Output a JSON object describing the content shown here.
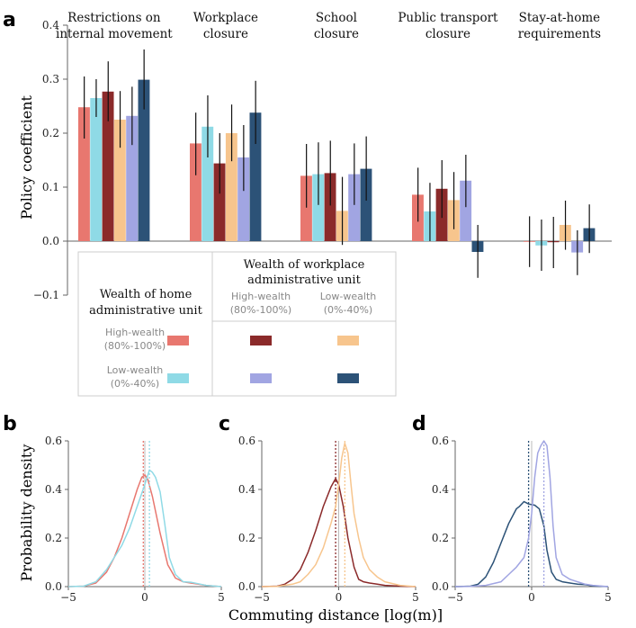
{
  "colors": {
    "hh": "#e8776f",
    "lh": "#8fdae6",
    "hl": "#8b2a2a",
    "ll_inv": "#f7c58d",
    "lhw": "#a1a5e2",
    "lll": "#2c5277",
    "err": "#111111",
    "axis": "#666666"
  },
  "panel_labels": [
    "a",
    "b",
    "c",
    "d"
  ],
  "legend": {
    "row_title": "Wealth of home administrative unit",
    "row_title_lines": [
      "Wealth of home",
      "administrative unit"
    ],
    "col_title_lines": [
      "Wealth of workplace",
      "administrative unit"
    ],
    "col_headers": [
      {
        "lines": [
          "High-wealth",
          "(80%-100%)"
        ]
      },
      {
        "lines": [
          "Low-wealth",
          "(0%-40%)"
        ]
      }
    ],
    "row_headers": [
      {
        "lines": [
          "High-wealth",
          "(80%-100%)"
        ]
      },
      {
        "lines": [
          "Low-wealth",
          "(0%-40%)"
        ]
      }
    ]
  },
  "xlabel_bottom": "Commuting distance [log(m)]",
  "chart_data": [
    {
      "type": "bar",
      "ylabel": "Policy coefficient",
      "ylim": [
        -0.1,
        0.4
      ],
      "yticks": [
        "0.4",
        "0.3",
        "0.2",
        "0.1",
        "0.0",
        "−0.1"
      ],
      "categories": [
        {
          "label_lines": [
            "Restrictions on",
            "internal movement"
          ]
        },
        {
          "label_lines": [
            "Workplace",
            "closure"
          ]
        },
        {
          "label_lines": [
            "School",
            "closure"
          ]
        },
        {
          "label_lines": [
            "Public transport",
            "closure"
          ]
        },
        {
          "label_lines": [
            "Stay-at-home",
            "requirements"
          ]
        }
      ],
      "series_colors": [
        "hh",
        "lh",
        "hl",
        "ll_inv",
        "lhw",
        "lll"
      ],
      "values": [
        [
          0.248,
          0.265,
          0.277,
          0.225,
          0.232,
          0.299
        ],
        [
          0.181,
          0.212,
          0.144,
          0.2,
          0.155,
          0.238
        ],
        [
          0.121,
          0.124,
          0.126,
          0.056,
          0.124,
          0.134
        ],
        [
          0.086,
          0.055,
          0.097,
          0.076,
          0.112,
          -0.02
        ],
        [
          -0.001,
          -0.008,
          -0.002,
          0.03,
          -0.021,
          0.024
        ]
      ],
      "errors": [
        [
          [
            0.19,
            0.305
          ],
          [
            0.23,
            0.3
          ],
          [
            0.222,
            0.333
          ],
          [
            0.173,
            0.278
          ],
          [
            0.178,
            0.286
          ],
          [
            0.244,
            0.355
          ]
        ],
        [
          [
            0.122,
            0.238
          ],
          [
            0.155,
            0.27
          ],
          [
            0.088,
            0.2
          ],
          [
            0.148,
            0.253
          ],
          [
            0.093,
            0.215
          ],
          [
            0.18,
            0.297
          ]
        ],
        [
          [
            0.062,
            0.18
          ],
          [
            0.067,
            0.183
          ],
          [
            0.066,
            0.186
          ],
          [
            -0.007,
            0.119
          ],
          [
            0.067,
            0.181
          ],
          [
            0.075,
            0.194
          ]
        ],
        [
          [
            0.036,
            0.136
          ],
          [
            0.0,
            0.108
          ],
          [
            0.043,
            0.15
          ],
          [
            0.022,
            0.128
          ],
          [
            0.063,
            0.16
          ],
          [
            -0.068,
            0.03
          ]
        ],
        [
          [
            -0.048,
            0.046
          ],
          [
            -0.055,
            0.04
          ],
          [
            -0.05,
            0.045
          ],
          [
            -0.016,
            0.075
          ],
          [
            -0.063,
            0.02
          ],
          [
            -0.022,
            0.068
          ]
        ]
      ]
    },
    {
      "type": "line",
      "panel": "b",
      "ylabel": "Probability density",
      "xlim": [
        -5,
        5
      ],
      "ylim": [
        0,
        0.6
      ],
      "xticks": [
        "−5",
        "0",
        "5"
      ],
      "yticks": [
        "0.6",
        "0.4",
        "0.2",
        "0.0"
      ],
      "series": [
        {
          "color": "hh",
          "mean": -0.1,
          "points": [
            [
              -5,
              0
            ],
            [
              -4,
              0.002
            ],
            [
              -3.2,
              0.015
            ],
            [
              -2.5,
              0.06
            ],
            [
              -2,
              0.12
            ],
            [
              -1.5,
              0.2
            ],
            [
              -1,
              0.3
            ],
            [
              -0.5,
              0.4
            ],
            [
              -0.2,
              0.45
            ],
            [
              0,
              0.46
            ],
            [
              0.2,
              0.44
            ],
            [
              0.5,
              0.37
            ],
            [
              1,
              0.22
            ],
            [
              1.5,
              0.09
            ],
            [
              2,
              0.035
            ],
            [
              2.5,
              0.02
            ],
            [
              3,
              0.015
            ],
            [
              3.5,
              0.01
            ],
            [
              4,
              0.005
            ],
            [
              5,
              0
            ]
          ]
        },
        {
          "color": "lh",
          "mean": 0.3,
          "points": [
            [
              -5,
              0
            ],
            [
              -4,
              0.002
            ],
            [
              -3.2,
              0.02
            ],
            [
              -2.5,
              0.07
            ],
            [
              -2,
              0.12
            ],
            [
              -1.5,
              0.17
            ],
            [
              -1,
              0.24
            ],
            [
              -0.5,
              0.33
            ],
            [
              0,
              0.42
            ],
            [
              0.3,
              0.48
            ],
            [
              0.5,
              0.47
            ],
            [
              0.7,
              0.45
            ],
            [
              1,
              0.39
            ],
            [
              1.3,
              0.26
            ],
            [
              1.6,
              0.12
            ],
            [
              2,
              0.05
            ],
            [
              2.5,
              0.02
            ],
            [
              3,
              0.018
            ],
            [
              3.5,
              0.012
            ],
            [
              4,
              0.005
            ],
            [
              5,
              0
            ]
          ]
        }
      ]
    },
    {
      "type": "line",
      "panel": "c",
      "xlim": [
        -5,
        5
      ],
      "ylim": [
        0,
        0.6
      ],
      "xticks": [
        "−5",
        "0",
        "5"
      ],
      "yticks": [
        "0.6",
        "0.4",
        "0.2",
        "0.0"
      ],
      "series": [
        {
          "color": "hl",
          "mean": -0.2,
          "points": [
            [
              -5,
              0
            ],
            [
              -4,
              0.002
            ],
            [
              -3.5,
              0.01
            ],
            [
              -3,
              0.03
            ],
            [
              -2.5,
              0.07
            ],
            [
              -2,
              0.14
            ],
            [
              -1.5,
              0.23
            ],
            [
              -1,
              0.33
            ],
            [
              -0.5,
              0.41
            ],
            [
              -0.2,
              0.445
            ],
            [
              0,
              0.42
            ],
            [
              0.3,
              0.33
            ],
            [
              0.6,
              0.2
            ],
            [
              1,
              0.08
            ],
            [
              1.3,
              0.03
            ],
            [
              1.6,
              0.02
            ],
            [
              2,
              0.015
            ],
            [
              2.5,
              0.01
            ],
            [
              3,
              0.005
            ],
            [
              4,
              0.002
            ],
            [
              5,
              0
            ]
          ]
        },
        {
          "color": "ll_inv",
          "mean": 0.4,
          "points": [
            [
              -5,
              0
            ],
            [
              -4,
              0.001
            ],
            [
              -3,
              0.01
            ],
            [
              -2.5,
              0.02
            ],
            [
              -2,
              0.05
            ],
            [
              -1.5,
              0.09
            ],
            [
              -1,
              0.16
            ],
            [
              -0.5,
              0.26
            ],
            [
              -0.2,
              0.33
            ],
            [
              0,
              0.42
            ],
            [
              0.2,
              0.53
            ],
            [
              0.4,
              0.59
            ],
            [
              0.6,
              0.55
            ],
            [
              0.8,
              0.42
            ],
            [
              1,
              0.3
            ],
            [
              1.3,
              0.2
            ],
            [
              1.6,
              0.12
            ],
            [
              2,
              0.07
            ],
            [
              2.5,
              0.04
            ],
            [
              3,
              0.02
            ],
            [
              4,
              0.005
            ],
            [
              5,
              0
            ]
          ]
        }
      ]
    },
    {
      "type": "line",
      "panel": "d",
      "xlim": [
        -5,
        5
      ],
      "ylim": [
        0,
        0.6
      ],
      "xticks": [
        "−5",
        "0",
        "5"
      ],
      "yticks": [
        "0.6",
        "0.4",
        "0.2",
        "0.0"
      ],
      "series": [
        {
          "color": "lll",
          "mean": -0.2,
          "points": [
            [
              -5,
              0
            ],
            [
              -4,
              0.002
            ],
            [
              -3.5,
              0.01
            ],
            [
              -3,
              0.04
            ],
            [
              -2.5,
              0.1
            ],
            [
              -2,
              0.18
            ],
            [
              -1.5,
              0.26
            ],
            [
              -1,
              0.32
            ],
            [
              -0.8,
              0.33
            ],
            [
              -0.5,
              0.35
            ],
            [
              -0.2,
              0.34
            ],
            [
              0.2,
              0.335
            ],
            [
              0.5,
              0.32
            ],
            [
              0.8,
              0.25
            ],
            [
              1,
              0.15
            ],
            [
              1.3,
              0.06
            ],
            [
              1.6,
              0.03
            ],
            [
              2,
              0.02
            ],
            [
              2.5,
              0.015
            ],
            [
              3,
              0.01
            ],
            [
              3.5,
              0.008
            ],
            [
              4,
              0.003
            ],
            [
              5,
              0
            ]
          ]
        },
        {
          "color": "lhw",
          "mean": 0.8,
          "points": [
            [
              -5,
              0
            ],
            [
              -4,
              0.001
            ],
            [
              -3,
              0.005
            ],
            [
              -2,
              0.02
            ],
            [
              -1.5,
              0.05
            ],
            [
              -1,
              0.08
            ],
            [
              -0.5,
              0.12
            ],
            [
              -0.2,
              0.2
            ],
            [
              0,
              0.3
            ],
            [
              0.2,
              0.45
            ],
            [
              0.4,
              0.55
            ],
            [
              0.6,
              0.58
            ],
            [
              0.8,
              0.6
            ],
            [
              1,
              0.58
            ],
            [
              1.2,
              0.45
            ],
            [
              1.4,
              0.25
            ],
            [
              1.6,
              0.12
            ],
            [
              2,
              0.05
            ],
            [
              2.5,
              0.03
            ],
            [
              3,
              0.02
            ],
            [
              3.5,
              0.01
            ],
            [
              4,
              0.005
            ],
            [
              5,
              0
            ]
          ]
        }
      ]
    }
  ]
}
